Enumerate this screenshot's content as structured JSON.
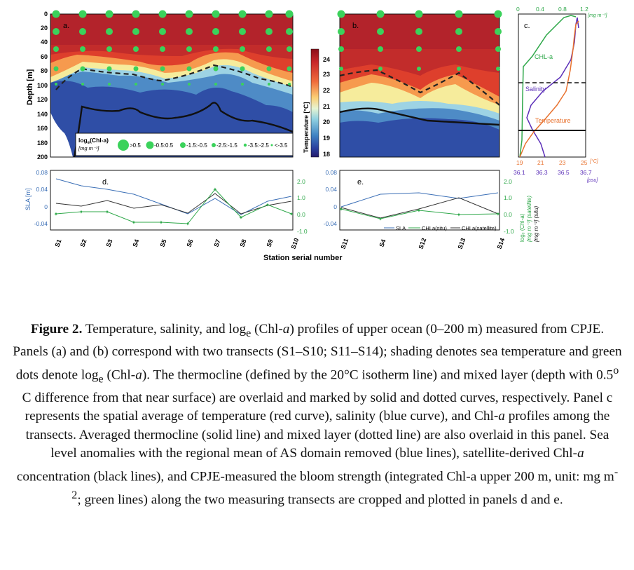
{
  "figure": {
    "panel_labels": [
      "a.",
      "b.",
      "c.",
      "d.",
      "e."
    ],
    "y_axis_label": "Depth [m]",
    "depth_ticks": [
      "0",
      "20",
      "40",
      "60",
      "80",
      "100",
      "120",
      "140",
      "160",
      "180",
      "200"
    ],
    "colorbar": {
      "label": "Temperature [°C]",
      "ticks": [
        "24",
        "23",
        "22",
        "21",
        "20",
        "19",
        "18"
      ]
    },
    "chl_legend": {
      "title_prefix": "log",
      "title_sub": "e",
      "title_suffix": "(Chl-a)",
      "units": "[mg m⁻³]",
      "items": [
        ">0.5",
        "-0.5:0.5",
        "-1.5:-0.5",
        "-2.5:-1.5",
        "-3.5:-2.5",
        "<-3.5"
      ]
    },
    "panel_c": {
      "top_ticks": [
        "0",
        "0.4",
        "0.8",
        "1.2"
      ],
      "top_units": "[mg m⁻³]",
      "temp_ticks": [
        "19",
        "21",
        "23",
        "25"
      ],
      "temp_units": "[°C]",
      "sal_ticks": [
        "36.1",
        "36.3",
        "36.5",
        "36.7"
      ],
      "sal_units": "[psu]",
      "labels": {
        "chl": "CHL-a",
        "salinity": "Salinity",
        "temperature": "Temperature"
      }
    },
    "panel_d": {
      "left_label": "SLA [m]",
      "left_ticks": [
        "0.08",
        "0.04",
        "0",
        "-0.04"
      ],
      "right_ticks": [
        "2.0",
        "1.0",
        "0.0",
        "-1.0"
      ],
      "stations": [
        "S1",
        "S2",
        "S3",
        "S4",
        "S5",
        "S6",
        "S7",
        "S8",
        "S9",
        "S10"
      ]
    },
    "panel_e": {
      "left_ticks": [
        "0.08",
        "0.04",
        "0",
        "-0.04"
      ],
      "right_ticks": [
        "2.0",
        "1.0",
        "0.0",
        "-1.0"
      ],
      "stations": [
        "S11",
        "S4",
        "S12",
        "S13",
        "S14"
      ],
      "right_label_1": "logₑ (Chl-a)",
      "right_label_2": "[mg m⁻³] (satellite)",
      "right_label_3": "[mg m⁻²] (situ)",
      "legend": [
        "SLA",
        "CHLa(situ)",
        "CHLa(satellite)"
      ]
    },
    "x_axis_title": "Station serial number"
  },
  "caption": {
    "figure_number": "Figure 2.",
    "text_1": " Temperature, salinity, and log",
    "sub_e1": "e",
    "text_2": " (Chl-",
    "italic_a1": "a",
    "text_3": ") profiles of upper ocean (0–200 m) measured from CPJE. Panels (a) and (b) correspond with two transects (S1–S10; S11–S14); shading denotes sea temperature and green dots denote log",
    "sub_e2": "e",
    "text_4": " (Chl-",
    "italic_a2": "a",
    "text_5": "). The thermocline (defined by the 20°C isotherm line) and mixed layer (depth with 0.5",
    "sup_o": "o",
    "text_6": " C difference from that near surface) are overlaid and marked by solid and dotted curves, respectively. Panel c represents the spatial average of temperature (red curve), salinity (blue curve), and Chl-",
    "italic_a3": "a",
    "text_7": " profiles among the transects. Averaged thermocline (solid line) and mixed layer (dotted line) are also overlaid in this panel. Sea level anomalies with the regional mean of AS domain removed (blue lines), satellite-derived Chl-",
    "italic_a4": "a",
    "text_8": " concentration (black lines), and CPJE-measured the bloom strength (integrated Chl-a upper 200 m, unit: mg m",
    "sup_m2": "-2",
    "text_9": "; green lines) along the two measuring transects are cropped and plotted in panels d and e."
  }
}
